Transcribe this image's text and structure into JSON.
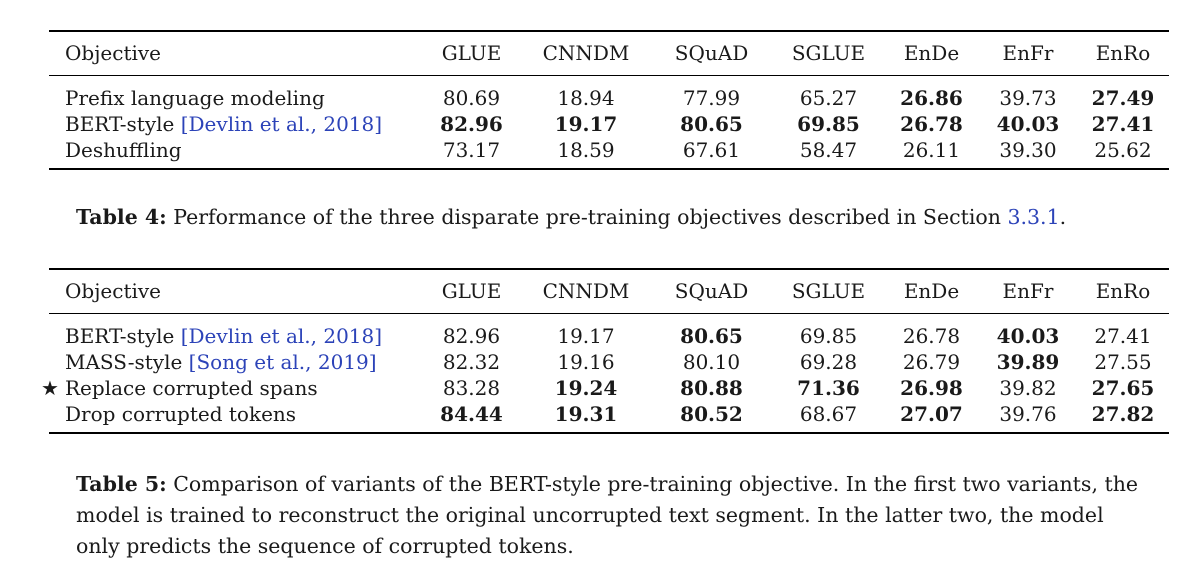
{
  "table4": {
    "columns": [
      "Objective",
      "GLUE",
      "CNNDM",
      "SQuAD",
      "SGLUE",
      "EnDe",
      "EnFr",
      "EnRo"
    ],
    "rows": [
      {
        "name": "Prefix language modeling",
        "cite": "",
        "star": false,
        "values": [
          "80.69",
          "18.94",
          "77.99",
          "65.27",
          "26.86",
          "39.73",
          "27.49"
        ],
        "bold": [
          false,
          false,
          false,
          false,
          true,
          false,
          true
        ]
      },
      {
        "name": "BERT-style",
        "cite": "[Devlin et al., 2018]",
        "star": false,
        "values": [
          "82.96",
          "19.17",
          "80.65",
          "69.85",
          "26.78",
          "40.03",
          "27.41"
        ],
        "bold": [
          true,
          true,
          true,
          true,
          true,
          true,
          true
        ]
      },
      {
        "name": "Deshuffling",
        "cite": "",
        "star": false,
        "values": [
          "73.17",
          "18.59",
          "67.61",
          "58.47",
          "26.11",
          "39.30",
          "25.62"
        ],
        "bold": [
          false,
          false,
          false,
          false,
          false,
          false,
          false
        ]
      }
    ]
  },
  "caption4": {
    "label": "Table 4:",
    "text": " Performance of the three disparate pre-training objectives described in Section ",
    "ref": "3.3.1",
    "end": "."
  },
  "table5": {
    "columns": [
      "Objective",
      "GLUE",
      "CNNDM",
      "SQuAD",
      "SGLUE",
      "EnDe",
      "EnFr",
      "EnRo"
    ],
    "rows": [
      {
        "name": "BERT-style",
        "cite": "[Devlin et al., 2018]",
        "star": false,
        "values": [
          "82.96",
          "19.17",
          "80.65",
          "69.85",
          "26.78",
          "40.03",
          "27.41"
        ],
        "bold": [
          false,
          false,
          true,
          false,
          false,
          true,
          false
        ]
      },
      {
        "name": "MASS-style",
        "cite": "[Song et al., 2019]",
        "star": false,
        "values": [
          "82.32",
          "19.16",
          "80.10",
          "69.28",
          "26.79",
          "39.89",
          "27.55"
        ],
        "bold": [
          false,
          false,
          false,
          false,
          false,
          true,
          false
        ]
      },
      {
        "name": "Replace corrupted spans",
        "cite": "",
        "star": true,
        "values": [
          "83.28",
          "19.24",
          "80.88",
          "71.36",
          "26.98",
          "39.82",
          "27.65"
        ],
        "bold": [
          false,
          true,
          true,
          true,
          true,
          false,
          true
        ]
      },
      {
        "name": "Drop corrupted tokens",
        "cite": "",
        "star": false,
        "values": [
          "84.44",
          "19.31",
          "80.52",
          "68.67",
          "27.07",
          "39.76",
          "27.82"
        ],
        "bold": [
          true,
          true,
          true,
          false,
          true,
          false,
          true
        ]
      }
    ]
  },
  "caption5": {
    "label": "Table 5:",
    "text": " Comparison of variants of the BERT-style pre-training objective. In the first two variants, the model is trained to reconstruct the original uncorrupted text segment. In the latter two, the model only predicts the sequence of corrupted tokens."
  },
  "symbols": {
    "star": "★"
  }
}
